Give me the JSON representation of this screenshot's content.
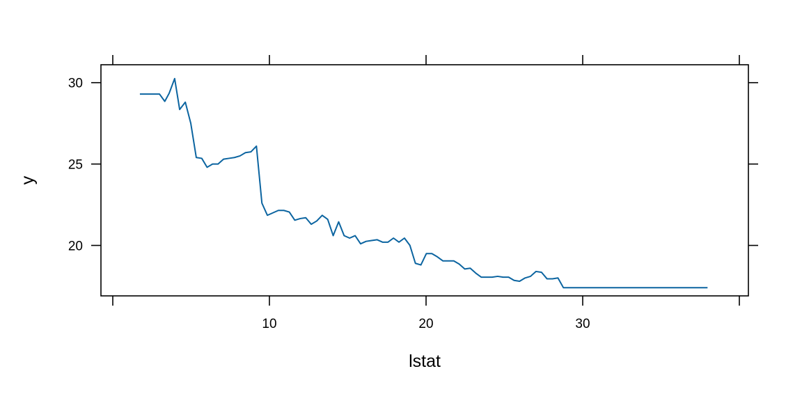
{
  "chart_data": {
    "type": "line",
    "title": "",
    "xlabel": "lstat",
    "ylabel": "y",
    "xlim": [
      0,
      40
    ],
    "ylim": [
      16.9,
      31.1
    ],
    "x_ticks": [
      0,
      10,
      20,
      30,
      40
    ],
    "x_tick_labels": [
      "10",
      "20",
      "30"
    ],
    "x_tick_label_values": [
      10,
      20,
      30
    ],
    "y_ticks": [
      20,
      25,
      30
    ],
    "y_tick_labels": [
      "20",
      "25",
      "30"
    ],
    "grid": false,
    "legend": "none",
    "line_color": "#0b64a0",
    "series": [
      {
        "x": [
          1.73,
          2.7,
          2.98,
          3.32,
          3.6,
          3.95,
          4.27,
          4.63,
          4.98,
          5.33,
          5.68,
          6.02,
          6.37,
          6.72,
          7.07,
          7.42,
          7.77,
          8.12,
          8.47,
          8.82,
          9.17,
          9.52,
          9.87,
          10.22,
          10.57,
          10.92,
          11.27,
          11.62,
          11.97,
          12.32,
          12.67,
          13.02,
          13.37,
          13.72,
          14.07,
          14.42,
          14.77,
          15.12,
          15.47,
          15.82,
          16.17,
          16.52,
          16.87,
          17.22,
          17.57,
          17.92,
          18.27,
          18.62,
          18.97,
          19.32,
          19.67,
          20.02,
          20.37,
          20.72,
          21.07,
          21.42,
          21.77,
          22.12,
          22.47,
          22.82,
          23.17,
          23.52,
          23.87,
          24.22,
          24.57,
          24.92,
          25.27,
          25.62,
          25.97,
          26.32,
          26.67,
          27.02,
          27.37,
          27.72,
          28.07,
          28.42,
          28.77,
          29.12,
          29.47,
          29.82,
          30.17,
          30.52,
          30.87,
          31.22,
          31.57,
          31.92,
          32.27,
          32.62,
          32.97,
          33.32,
          33.67,
          34.02,
          34.37,
          34.72,
          35.07,
          35.42,
          35.77,
          36.12,
          36.47,
          36.82,
          37.17,
          37.52,
          37.97
        ],
        "y": [
          29.3,
          29.3,
          29.3,
          28.85,
          29.35,
          30.25,
          28.35,
          28.8,
          27.5,
          25.4,
          25.35,
          24.8,
          25.0,
          25.0,
          25.3,
          25.35,
          25.4,
          25.5,
          25.7,
          25.75,
          26.1,
          22.6,
          21.85,
          22.0,
          22.15,
          22.15,
          22.05,
          21.55,
          21.65,
          21.7,
          21.3,
          21.5,
          21.85,
          21.6,
          20.6,
          21.45,
          20.6,
          20.45,
          20.6,
          20.1,
          20.25,
          20.3,
          20.35,
          20.2,
          20.2,
          20.45,
          20.2,
          20.45,
          20.0,
          18.9,
          18.8,
          19.5,
          19.5,
          19.3,
          19.05,
          19.05,
          19.05,
          18.85,
          18.55,
          18.6,
          18.3,
          18.05,
          18.05,
          18.05,
          18.1,
          18.05,
          18.05,
          17.85,
          17.8,
          18.0,
          18.1,
          18.4,
          18.35,
          17.95,
          17.95,
          18.0,
          17.4,
          17.4,
          17.4,
          17.4,
          17.4,
          17.4,
          17.4,
          17.4,
          17.4,
          17.4,
          17.4,
          17.4,
          17.4,
          17.4,
          17.4,
          17.4,
          17.4,
          17.4,
          17.4,
          17.4,
          17.4,
          17.4,
          17.4,
          17.4,
          17.4,
          17.4,
          17.4
        ]
      }
    ]
  }
}
